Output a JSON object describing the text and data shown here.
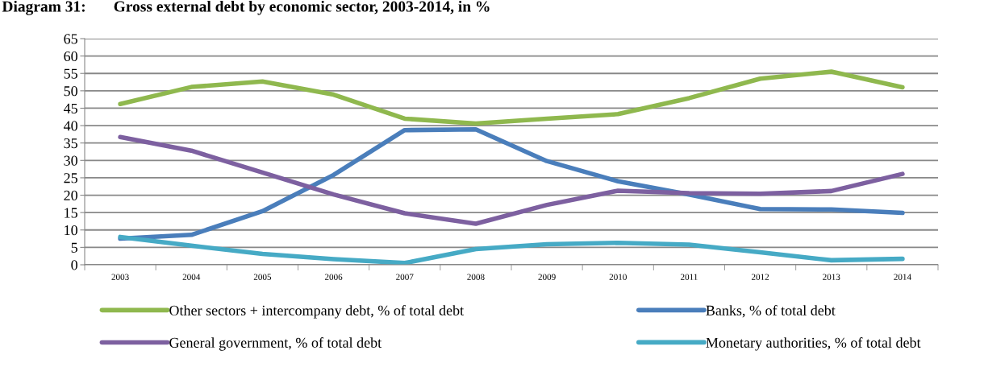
{
  "chart_data": {
    "type": "line",
    "title": "Diagram 31:       Gross external debt by economic sector, 2003-2014, in %",
    "categories": [
      "2003",
      "2004",
      "2005",
      "2006",
      "2007",
      "2008",
      "2009",
      "2010",
      "2011",
      "2012",
      "2013",
      "2014"
    ],
    "series": [
      {
        "name": "Other sectors + intercompany debt, % of total debt",
        "color": "#8fb84e",
        "values": [
          46.2,
          51.1,
          52.7,
          48.9,
          42.0,
          40.6,
          42.0,
          43.3,
          47.9,
          53.5,
          55.5,
          51.0
        ]
      },
      {
        "name": "Banks, % of total debt",
        "color": "#4a7ebb",
        "values": [
          7.5,
          8.6,
          15.4,
          25.8,
          38.7,
          38.9,
          29.8,
          24.0,
          20.2,
          16.0,
          15.9,
          14.9
        ]
      },
      {
        "name": "General government, % of total debt",
        "color": "#7d60a0",
        "values": [
          36.7,
          32.8,
          26.5,
          20.2,
          14.8,
          11.8,
          17.2,
          21.3,
          20.6,
          20.4,
          21.2,
          26.1
        ]
      },
      {
        "name": "Monetary authorities, % of total debt",
        "color": "#46aac5",
        "values": [
          8.0,
          5.5,
          3.1,
          1.6,
          0.5,
          4.5,
          5.9,
          6.3,
          5.8,
          3.6,
          1.3,
          1.7
        ]
      }
    ],
    "ylim": [
      0,
      65
    ],
    "yticks": [
      0,
      5,
      10,
      15,
      20,
      25,
      30,
      35,
      40,
      45,
      50,
      55,
      60,
      65
    ],
    "grid": "y",
    "legend": "bottom",
    "marker": "none",
    "line_style": "solid"
  }
}
